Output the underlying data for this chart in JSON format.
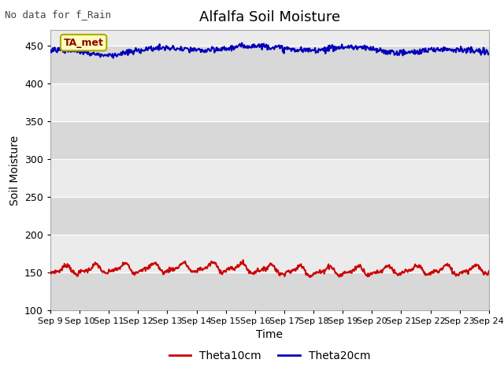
{
  "title": "Alfalfa Soil Moisture",
  "xlabel": "Time",
  "ylabel": "Soil Moisture",
  "no_data_text": "No data for f_Rain",
  "annotation_text": "TA_met",
  "ylim": [
    100,
    470
  ],
  "yticks": [
    100,
    150,
    200,
    250,
    300,
    350,
    400,
    450
  ],
  "x_tick_labels": [
    "Sep 9",
    "Sep 10",
    "Sep 11",
    "Sep 12",
    "Sep 13",
    "Sep 14",
    "Sep 15",
    "Sep 16",
    "Sep 17",
    "Sep 18",
    "Sep 19",
    "Sep 20",
    "Sep 21",
    "Sep 22",
    "Sep 23",
    "Sep 24"
  ],
  "theta10_color": "#cc0000",
  "theta20_color": "#0000bb",
  "bg_color_light": "#ebebeb",
  "bg_color_dark": "#d8d8d8",
  "legend_labels": [
    "Theta10cm",
    "Theta20cm"
  ],
  "title_fontsize": 13,
  "axis_label_fontsize": 10,
  "tick_fontsize": 9,
  "grid_color": "#ffffff"
}
